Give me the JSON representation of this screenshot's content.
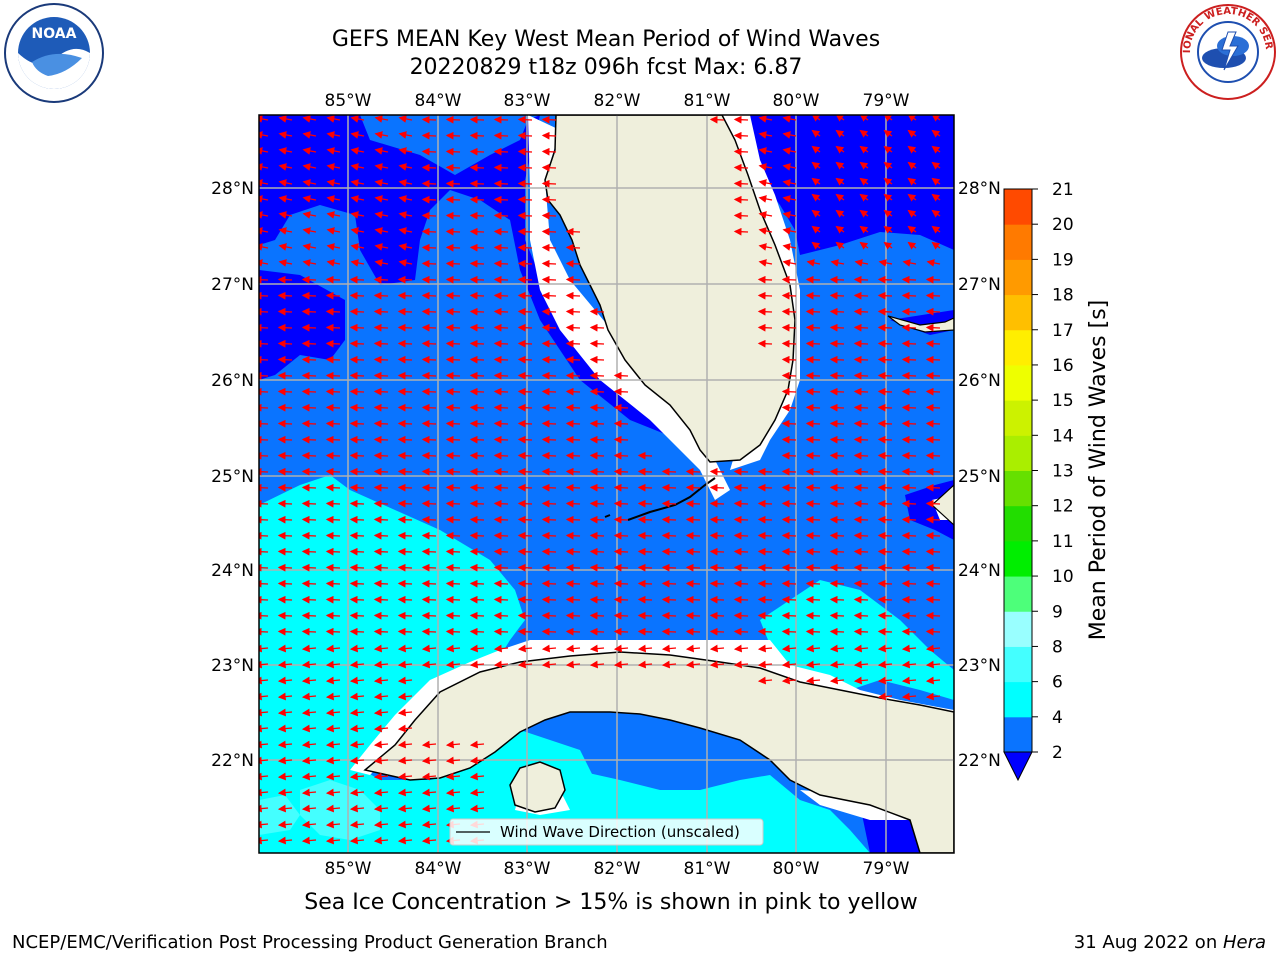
{
  "header": {
    "title_line1": "GEFS MEAN Key West Mean Period of Wind Waves",
    "title_line2": "20220829 t18z 096h fcst   Max: 6.87"
  },
  "logos": {
    "left": "noaa-logo",
    "left_text": "NOAA",
    "right": "nws-logo",
    "right_text": "NATIONAL WEATHER SERVICE"
  },
  "map": {
    "lon_labels": [
      "85°W",
      "84°W",
      "83°W",
      "82°W",
      "81°W",
      "80°W",
      "79°W"
    ],
    "lat_labels": [
      "28°N",
      "27°N",
      "26°N",
      "25°N",
      "24°N",
      "23°N",
      "22°N"
    ],
    "legend_label": "Wind Wave Direction (unscaled)",
    "colors": {
      "dark_blue": "#0000ff",
      "blue": "#0a74ff",
      "cyan": "#00ffff",
      "light_cyan": "#44ffff",
      "land": "#efefdc",
      "arrow": "#ff0000",
      "grid": "#b0b0b0"
    }
  },
  "colorbar": {
    "label": "Mean Period of Wind Waves [s]",
    "ticks": [
      "2",
      "4",
      "6",
      "8",
      "9",
      "10",
      "11",
      "12",
      "13",
      "14",
      "15",
      "16",
      "17",
      "18",
      "19",
      "20",
      "21"
    ],
    "colors": [
      "#0a74ff",
      "#00ffff",
      "#44ffff",
      "#99ffff",
      "#4dff7a",
      "#00ee00",
      "#22dd00",
      "#66e000",
      "#aaee00",
      "#ccf200",
      "#eeff00",
      "#ffee00",
      "#ffbf00",
      "#ff9a00",
      "#ff7a00",
      "#ff4a00",
      "#ff1a00"
    ],
    "extend_color": "#0000ff"
  },
  "caption": "Sea Ice Concentration > 15% is shown in pink to yellow",
  "footer": {
    "left": "NCEP/EMC/Verification Post Processing Product Generation Branch",
    "right_date": "31 Aug 2022 on ",
    "right_host": "Hera"
  }
}
